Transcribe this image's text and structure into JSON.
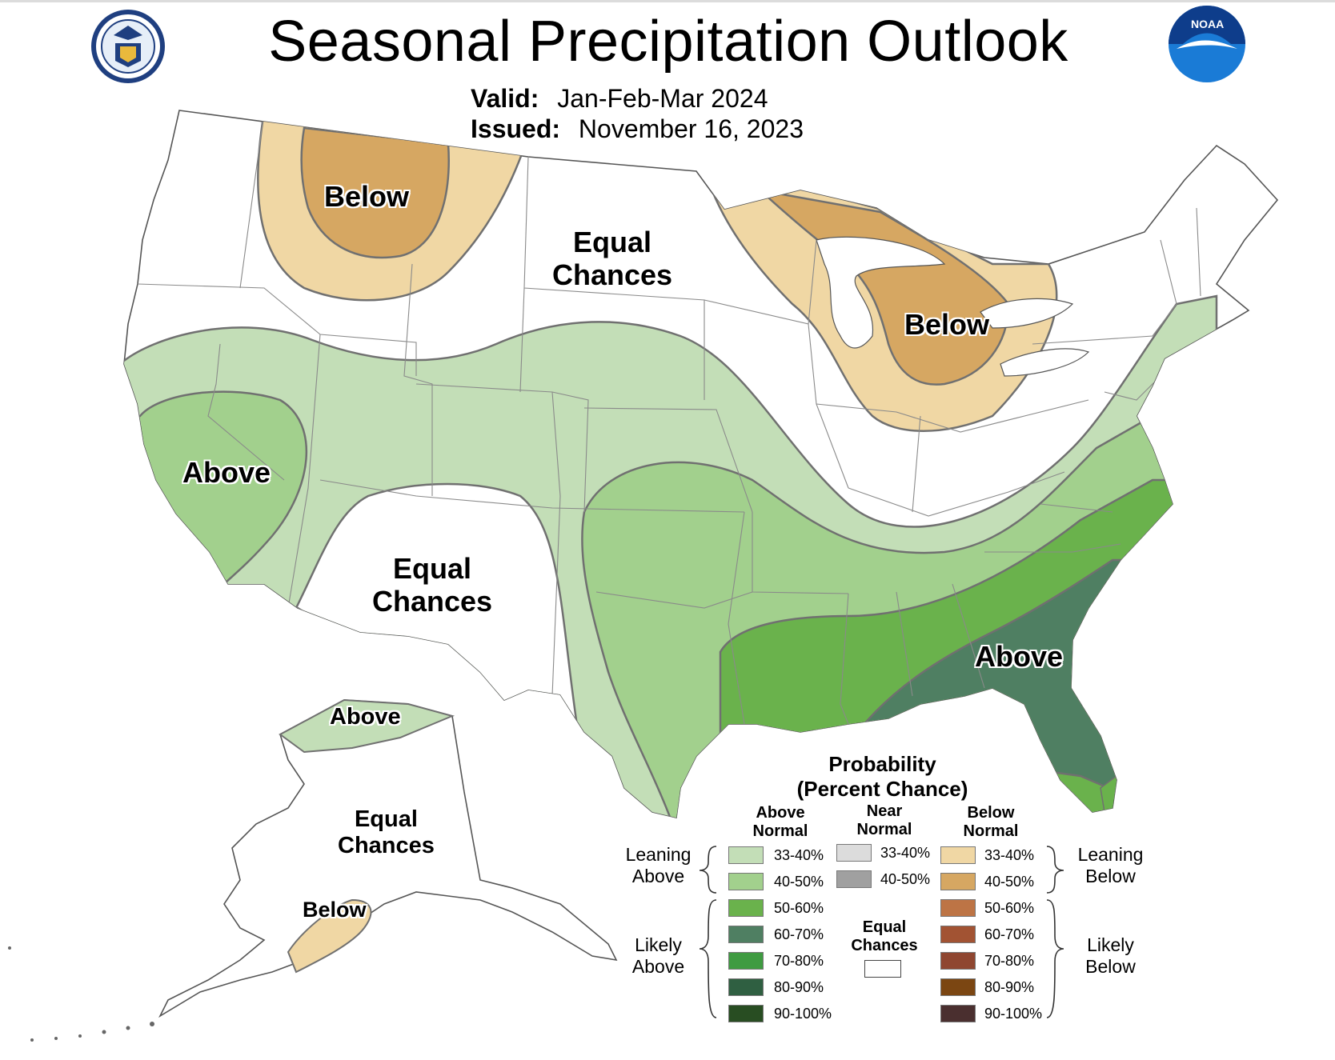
{
  "header": {
    "title": "Seasonal Precipitation Outlook",
    "valid_label": "Valid:",
    "valid_value": "Jan-Feb-Mar 2024",
    "issued_label": "Issued:",
    "issued_value": "November 16, 2023"
  },
  "logos": {
    "left": "doc-seal-icon",
    "right": "noaa-logo-icon",
    "noaa_text": "NOAA"
  },
  "regions": {
    "below_northwest": "Below",
    "ec_north_central": [
      "Equal",
      "Chances"
    ],
    "below_great_lakes": "Below",
    "above_california": "Above",
    "ec_southwest": [
      "Equal",
      "Chances"
    ],
    "above_southeast": "Above",
    "above_alaska_north": "Above",
    "ec_alaska": [
      "Equal",
      "Chances"
    ],
    "below_alaska_south": "Below"
  },
  "colors": {
    "above_33_40": "#c3deb7",
    "above_40_50": "#a2d08d",
    "above_50_60": "#6ab24c",
    "above_60_70": "#4f7f62",
    "above_70_80": "#3f9b41",
    "above_80_90": "#2f5f41",
    "above_90_100": "#284d22",
    "near_33_40": "#dcdcdc",
    "near_40_50": "#a0a0a0",
    "below_33_40": "#f0d7a4",
    "below_40_50": "#d6a762",
    "below_50_60": "#bd7445",
    "below_60_70": "#a25333",
    "below_70_80": "#8f4630",
    "below_80_90": "#7b4612",
    "below_90_100": "#4a2f2f",
    "boundary": "#707070"
  },
  "legend": {
    "title_line1": "Probability",
    "title_line2": "(Percent Chance)",
    "above_head": [
      "Above",
      "Normal"
    ],
    "near_head": [
      "Near",
      "Normal"
    ],
    "below_head": [
      "Below",
      "Normal"
    ],
    "above_items": [
      "33-40%",
      "40-50%",
      "50-60%",
      "60-70%",
      "70-80%",
      "80-90%",
      "90-100%"
    ],
    "near_items": [
      "33-40%",
      "40-50%"
    ],
    "below_items": [
      "33-40%",
      "40-50%",
      "50-60%",
      "60-70%",
      "70-80%",
      "80-90%",
      "90-100%"
    ],
    "leaning_above": [
      "Leaning",
      "Above"
    ],
    "likely_above": [
      "Likely",
      "Above"
    ],
    "leaning_below": [
      "Leaning",
      "Below"
    ],
    "likely_below": [
      "Likely",
      "Below"
    ],
    "equal_chances": [
      "Equal",
      "Chances"
    ]
  }
}
